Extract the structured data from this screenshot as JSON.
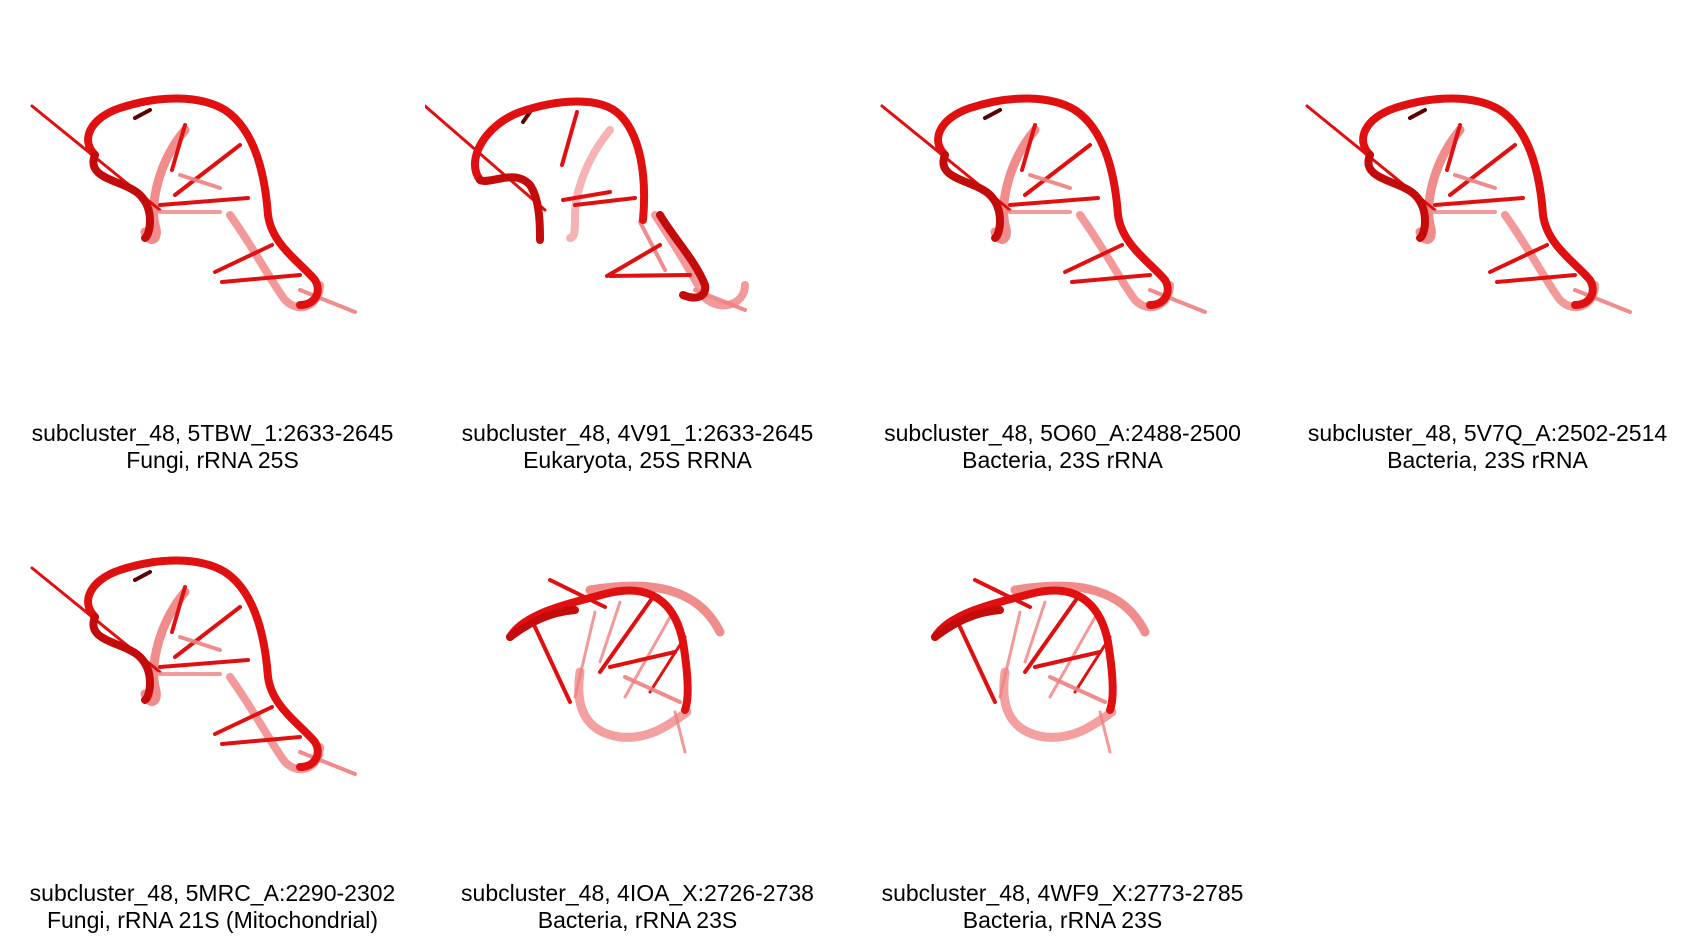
{
  "panels": [
    {
      "title": "subcluster_48, 5TBW_1:2633-2645",
      "subtitle": "Fungi, rRNA 25S",
      "variant": "A"
    },
    {
      "title": "subcluster_48, 4V91_1:2633-2645",
      "subtitle": "Eukaryota, 25S RRNA",
      "variant": "B"
    },
    {
      "title": "subcluster_48, 5O60_A:2488-2500",
      "subtitle": "Bacteria, 23S rRNA",
      "variant": "A"
    },
    {
      "title": "subcluster_48, 5V7Q_A:2502-2514",
      "subtitle": "Bacteria, 23S rRNA",
      "variant": "A"
    },
    {
      "title": "subcluster_48, 5MRC_A:2290-2302",
      "subtitle": "Fungi, rRNA 21S (Mitochondrial)",
      "variant": "A"
    },
    {
      "title": "subcluster_48, 4IOA_X:2726-2738",
      "subtitle": "Bacteria, rRNA 23S",
      "variant": "C"
    },
    {
      "title": "subcluster_48, 4WF9_X:2773-2785",
      "subtitle": "Bacteria, rRNA 23S",
      "variant": "C"
    }
  ],
  "colors": {
    "strand": "#e01010",
    "strand_dark": "#c40b0b",
    "strand_light": "#f08080",
    "dark_accent": "#5a0000"
  }
}
